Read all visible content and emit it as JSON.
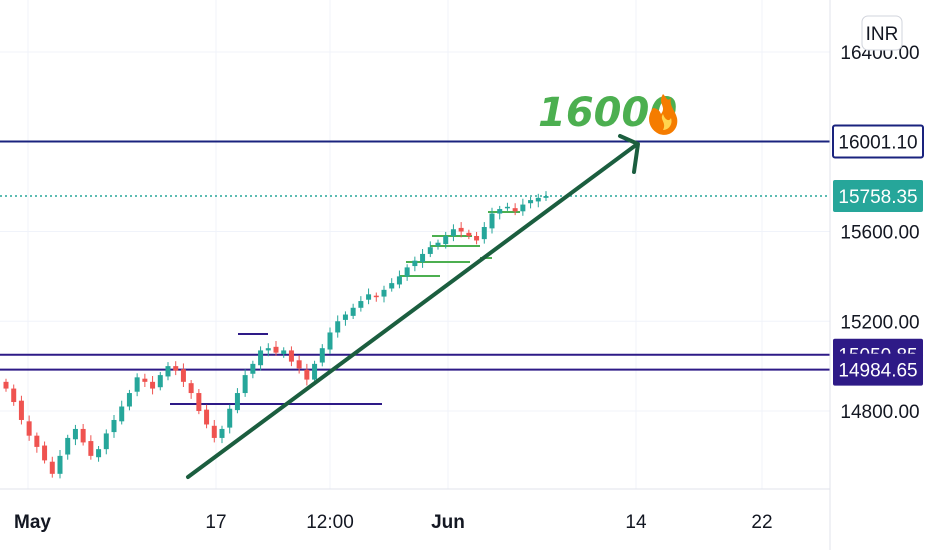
{
  "currency": "INR",
  "colors": {
    "up": "#26a69a",
    "down": "#ef5350",
    "level_line": "#1a237e",
    "trend_arrow": "#1b5e3f",
    "annotation": "#4caf50",
    "last_price": "#26a69a",
    "badge_navy": "#1a237e",
    "badge_indigo": "#2e1a87",
    "grid": "#f0f3fa"
  },
  "icons": {
    "annotation_icon": "fire-icon"
  },
  "chart_data": {
    "type": "candlestick",
    "ylim": [
      14450,
      16550
    ],
    "y_ticks": [
      {
        "value": 16400,
        "label": "16400.00"
      },
      {
        "value": 15600,
        "label": "15600.00"
      },
      {
        "value": 15200,
        "label": "15200.00"
      },
      {
        "value": 14800,
        "label": "14800.00"
      }
    ],
    "x_ticks": [
      "May",
      "17",
      "12:00",
      "Jun",
      "14",
      "22"
    ],
    "price_badges": [
      {
        "value": 16001.1,
        "label": "16001.10",
        "style": "navy"
      },
      {
        "value": 15758.35,
        "label": "15758.35",
        "style": "last"
      },
      {
        "value": 15050.85,
        "label": "15050.85",
        "style": "indigo"
      },
      {
        "value": 14984.65,
        "label": "14984.65",
        "style": "indigo"
      }
    ],
    "horizontal_levels": [
      16001.1,
      15050.85,
      14984.65
    ],
    "last_price": 15758.35,
    "annotation": {
      "text": "16000",
      "icon": "fire-icon"
    },
    "series": [
      {
        "name": "candles",
        "close": [
          14900,
          14840,
          14760,
          14690,
          14640,
          14580,
          14520,
          14600,
          14680,
          14720,
          14660,
          14600,
          14630,
          14700,
          14760,
          14820,
          14880,
          14950,
          14930,
          14900,
          14960,
          15000,
          14980,
          14930,
          14880,
          14800,
          14740,
          14680,
          14720,
          14810,
          14880,
          14960,
          15010,
          15070,
          15080,
          15060,
          15070,
          15020,
          14990,
          14940,
          15010,
          15080,
          15150,
          15200,
          15230,
          15260,
          15290,
          15320,
          15310,
          15340,
          15370,
          15400,
          15440,
          15470,
          15500,
          15530,
          15550,
          15580,
          15610,
          15600,
          15580,
          15560,
          15620,
          15680,
          15700,
          15710,
          15690,
          15720,
          15740,
          15750,
          15758
        ]
      }
    ]
  }
}
